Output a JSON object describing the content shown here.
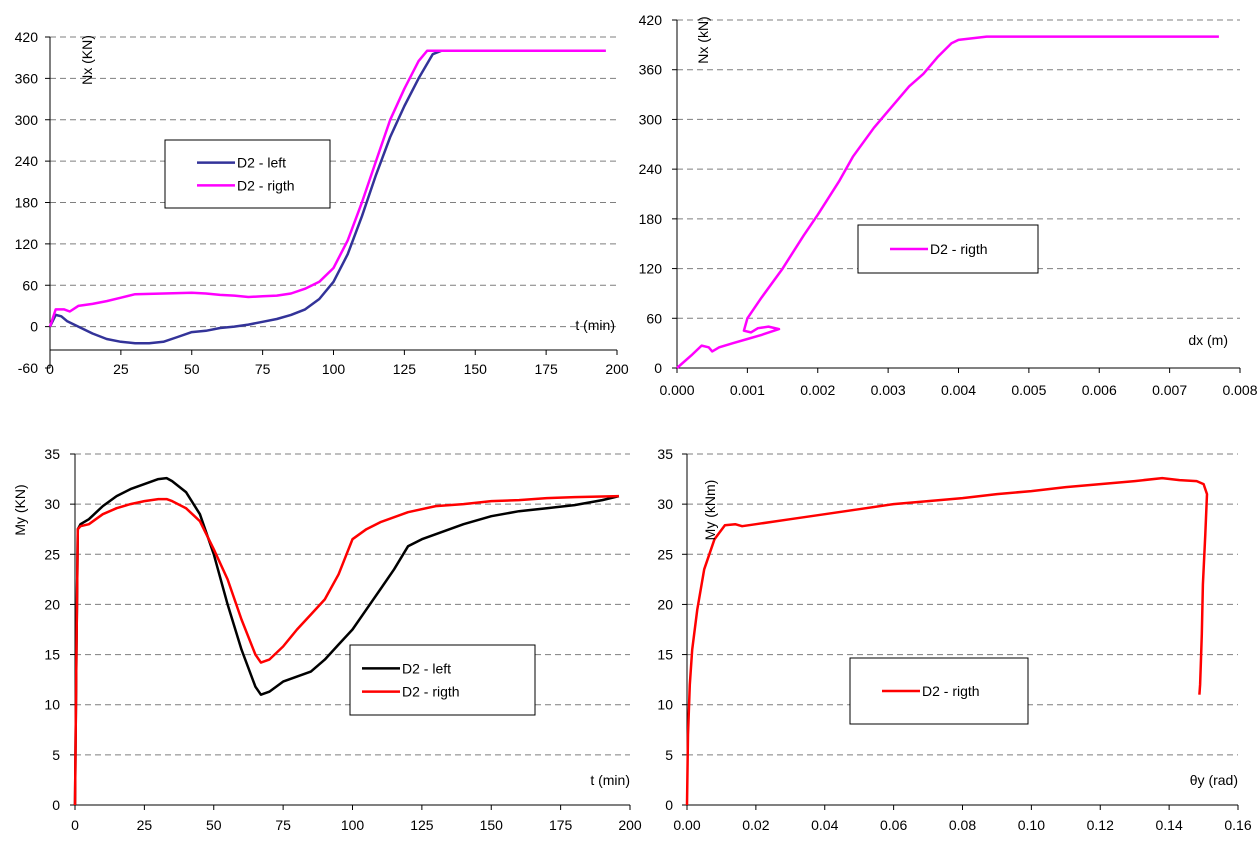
{
  "chart_data": [
    {
      "type": "line",
      "xlabel": "t (min)",
      "ylabel": "Nx (KN)",
      "xlim": [
        0,
        200
      ],
      "ylim": [
        -60,
        420
      ],
      "xticks": [
        "0",
        "25",
        "50",
        "75",
        "100",
        "125",
        "150",
        "175",
        "200"
      ],
      "yticks": [
        "-60",
        "0",
        "60",
        "120",
        "180",
        "240",
        "300",
        "360",
        "420"
      ],
      "grid": true,
      "legend": "center-left",
      "series": [
        {
          "name": "D2 - left",
          "color": "#333399",
          "x": [
            0,
            2,
            4,
            6,
            10,
            15,
            20,
            25,
            30,
            35,
            40,
            45,
            50,
            55,
            60,
            65,
            70,
            75,
            80,
            85,
            90,
            95,
            100,
            105,
            110,
            115,
            120,
            125,
            130,
            135,
            138,
            140,
            160,
            180,
            196
          ],
          "y": [
            0,
            17,
            15,
            8,
            0,
            -10,
            -18,
            -22,
            -24,
            -24,
            -22,
            -15,
            -8,
            -6,
            -2,
            0,
            3,
            7,
            11,
            17,
            25,
            40,
            65,
            105,
            160,
            220,
            275,
            320,
            360,
            395,
            400,
            400,
            400,
            400,
            400
          ]
        },
        {
          "name": "D2 - rigth",
          "color": "#ff00ff",
          "x": [
            0,
            2,
            5,
            7,
            10,
            15,
            20,
            25,
            30,
            40,
            50,
            55,
            60,
            65,
            70,
            75,
            80,
            85,
            90,
            95,
            100,
            105,
            110,
            115,
            120,
            125,
            130,
            133,
            135,
            140,
            160,
            180,
            196
          ],
          "y": [
            0,
            25,
            25,
            22,
            30,
            33,
            37,
            42,
            47,
            48,
            49,
            48,
            46,
            45,
            43,
            44,
            45,
            48,
            55,
            65,
            85,
            125,
            180,
            240,
            300,
            345,
            385,
            400,
            400,
            400,
            400,
            400,
            400
          ]
        }
      ]
    },
    {
      "type": "line",
      "xlabel": "dx (m)",
      "ylabel": "Nx (kN)",
      "xlim": [
        0,
        0.008
      ],
      "ylim": [
        0,
        420
      ],
      "xticks": [
        "0.000",
        "0.001",
        "0.002",
        "0.003",
        "0.004",
        "0.005",
        "0.006",
        "0.007",
        "0.008"
      ],
      "yticks": [
        "0",
        "60",
        "120",
        "180",
        "240",
        "300",
        "360",
        "420"
      ],
      "grid": true,
      "legend": "center",
      "series": [
        {
          "name": "D2 - rigth",
          "color": "#ff00ff",
          "x": [
            0,
            0.0002,
            0.00035,
            0.00045,
            0.0005,
            0.0006,
            0.0008,
            0.001,
            0.0012,
            0.00145,
            0.0013,
            0.00115,
            0.00105,
            0.00095,
            0.001,
            0.0012,
            0.0015,
            0.0018,
            0.002,
            0.0023,
            0.0025,
            0.0028,
            0.003,
            0.0033,
            0.0035,
            0.0037,
            0.0039,
            0.004,
            0.0042,
            0.0044,
            0.005,
            0.006,
            0.0077
          ],
          "y": [
            0,
            15,
            27,
            25,
            20,
            25,
            30,
            35,
            40,
            47,
            50,
            48,
            43,
            45,
            60,
            85,
            120,
            160,
            185,
            225,
            255,
            290,
            310,
            340,
            355,
            375,
            392,
            396,
            398,
            400,
            400,
            400,
            400
          ]
        }
      ]
    },
    {
      "type": "line",
      "xlabel": "t (min)",
      "ylabel": "My (KN)",
      "xlim": [
        0,
        200
      ],
      "ylim": [
        0,
        35
      ],
      "xticks": [
        "0",
        "25",
        "50",
        "75",
        "100",
        "125",
        "150",
        "175",
        "200"
      ],
      "yticks": [
        "0",
        "5",
        "10",
        "15",
        "20",
        "25",
        "30",
        "35"
      ],
      "grid": true,
      "legend": "center-right",
      "series": [
        {
          "name": "D2 - left",
          "color": "#000000",
          "x": [
            0,
            0.5,
            1,
            2,
            5,
            10,
            15,
            20,
            25,
            30,
            33,
            35,
            40,
            45,
            50,
            55,
            60,
            65,
            67,
            70,
            75,
            80,
            85,
            90,
            95,
            100,
            105,
            110,
            115,
            120,
            125,
            130,
            140,
            150,
            160,
            170,
            180,
            190,
            196
          ],
          "y": [
            0,
            15,
            27.5,
            28,
            28.5,
            29.8,
            30.8,
            31.5,
            32,
            32.5,
            32.6,
            32.3,
            31.2,
            29,
            25,
            20,
            15.5,
            11.8,
            11,
            11.3,
            12.3,
            12.8,
            13.3,
            14.5,
            16,
            17.5,
            19.5,
            21.5,
            23.5,
            25.8,
            26.5,
            27,
            28,
            28.8,
            29.3,
            29.6,
            29.9,
            30.4,
            30.8
          ]
        },
        {
          "name": "D2 - rigth",
          "color": "#ff0000",
          "x": [
            0,
            0.5,
            1,
            2,
            5,
            10,
            15,
            20,
            25,
            30,
            33,
            35,
            40,
            45,
            50,
            55,
            60,
            65,
            67,
            70,
            75,
            80,
            85,
            90,
            95,
            100,
            105,
            110,
            120,
            130,
            140,
            150,
            160,
            170,
            180,
            196
          ],
          "y": [
            0,
            15,
            27.5,
            27.8,
            28,
            29,
            29.6,
            30,
            30.3,
            30.5,
            30.5,
            30.3,
            29.6,
            28.3,
            25.5,
            22.5,
            18.5,
            15,
            14.2,
            14.5,
            15.8,
            17.5,
            19,
            20.5,
            23,
            26.5,
            27.5,
            28.2,
            29.2,
            29.8,
            30,
            30.3,
            30.4,
            30.6,
            30.7,
            30.8
          ]
        }
      ]
    },
    {
      "type": "line",
      "xlabel": "θy (rad)",
      "ylabel": "My (kNm)",
      "xlim": [
        0,
        0.16
      ],
      "ylim": [
        0,
        35
      ],
      "xticks": [
        "0.00",
        "0.02",
        "0.04",
        "0.06",
        "0.08",
        "0.10",
        "0.12",
        "0.14",
        "0.16"
      ],
      "yticks": [
        "0",
        "5",
        "10",
        "15",
        "20",
        "25",
        "30",
        "35"
      ],
      "grid": true,
      "legend": "center",
      "series": [
        {
          "name": "D2 - rigth",
          "color": "#ff0000",
          "x": [
            0,
            0.0003,
            0.0008,
            0.0015,
            0.003,
            0.005,
            0.008,
            0.011,
            0.014,
            0.016,
            0.02,
            0.03,
            0.04,
            0.05,
            0.06,
            0.07,
            0.08,
            0.09,
            0.1,
            0.11,
            0.12,
            0.13,
            0.138,
            0.143,
            0.148,
            0.15,
            0.151,
            0.1505,
            0.1498,
            0.1495,
            0.1492,
            0.149,
            0.1488
          ],
          "y": [
            0,
            7,
            12,
            15.5,
            19.5,
            23.5,
            26.5,
            27.9,
            28,
            27.8,
            28,
            28.5,
            29,
            29.5,
            30,
            30.3,
            30.6,
            31,
            31.3,
            31.7,
            32,
            32.3,
            32.6,
            32.4,
            32.3,
            32,
            31,
            27,
            22,
            17,
            14,
            12,
            11
          ]
        }
      ]
    }
  ]
}
